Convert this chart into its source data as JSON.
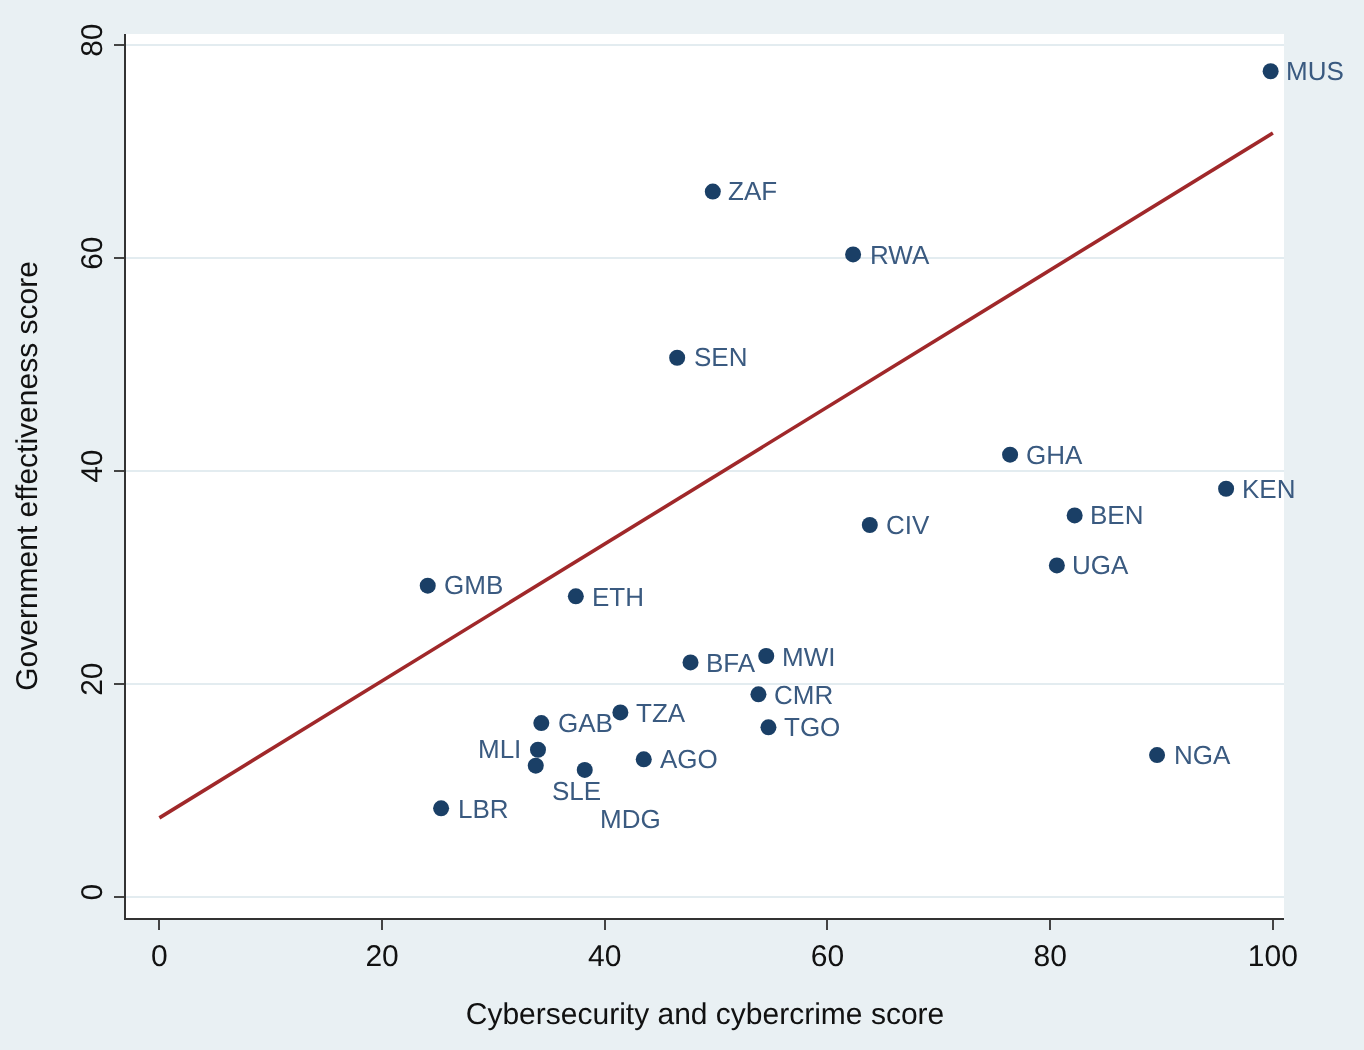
{
  "chart_data": {
    "type": "scatter",
    "xlabel": "Cybersecurity and cybercrime score",
    "ylabel": "Government effectiveness score",
    "series": [
      {
        "type": "scatter",
        "color": "#1a3f66",
        "marker": "circle",
        "x": [
          99.8,
          49.7,
          62.3,
          46.5,
          76.4,
          95.8,
          82.2,
          63.8,
          80.6,
          24.1,
          37.4,
          47.7,
          54.5,
          53.8,
          41.4,
          34.3,
          54.7,
          34.0,
          33.8,
          38.2,
          43.5,
          89.6,
          25.3
        ],
        "values": [
          77.5,
          66.2,
          60.3,
          50.6,
          41.5,
          38.3,
          35.8,
          34.9,
          31.1,
          29.2,
          28.2,
          22.0,
          22.6,
          19.0,
          17.3,
          16.3,
          15.9,
          13.8,
          12.3,
          11.9,
          12.9,
          13.3,
          8.3
        ]
      },
      {
        "type": "line",
        "color": "#a0282a",
        "marker": "none",
        "line_style": "solid",
        "x": [
          0,
          100
        ],
        "values": [
          7.4,
          71.7
        ]
      }
    ],
    "annotations": [
      {
        "text": "MUS",
        "x": 99.8,
        "y": 77.5
      },
      {
        "text": "ZAF",
        "x": 49.7,
        "y": 66.2
      },
      {
        "text": "RWA",
        "x": 62.3,
        "y": 60.3
      },
      {
        "text": "SEN",
        "x": 46.5,
        "y": 50.6
      },
      {
        "text": "GHA",
        "x": 76.4,
        "y": 41.5
      },
      {
        "text": "KEN",
        "x": 95.8,
        "y": 38.3
      },
      {
        "text": "BEN",
        "x": 82.2,
        "y": 35.8
      },
      {
        "text": "CIV",
        "x": 63.8,
        "y": 34.9
      },
      {
        "text": "UGA",
        "x": 80.6,
        "y": 31.1
      },
      {
        "text": "GMB",
        "x": 24.1,
        "y": 29.2
      },
      {
        "text": "ETH",
        "x": 37.4,
        "y": 28.2
      },
      {
        "text": "BFA",
        "x": 47.7,
        "y": 22.0
      },
      {
        "text": "MWI",
        "x": 54.5,
        "y": 22.6
      },
      {
        "text": "CMR",
        "x": 53.8,
        "y": 19.0
      },
      {
        "text": "TZA",
        "x": 41.4,
        "y": 17.3
      },
      {
        "text": "GAB",
        "x": 34.3,
        "y": 16.3
      },
      {
        "text": "TGO",
        "x": 54.7,
        "y": 15.9
      },
      {
        "text": "MLI",
        "x": 34.0,
        "y": 13.8
      },
      {
        "text": "SLE",
        "x": 33.8,
        "y": 12.3
      },
      {
        "text": "MDG",
        "x": 38.2,
        "y": 11.9
      },
      {
        "text": "AGO",
        "x": 43.5,
        "y": 12.9
      },
      {
        "text": "NGA",
        "x": 89.6,
        "y": 13.3
      },
      {
        "text": "LBR",
        "x": 25.3,
        "y": 8.3
      }
    ],
    "xlim": [
      -3,
      101
    ],
    "ylim": [
      -2,
      81
    ],
    "xticks": [
      0,
      20,
      40,
      60,
      80,
      100
    ],
    "yticks": [
      0,
      20,
      40,
      60,
      80
    ],
    "grid": "y"
  }
}
